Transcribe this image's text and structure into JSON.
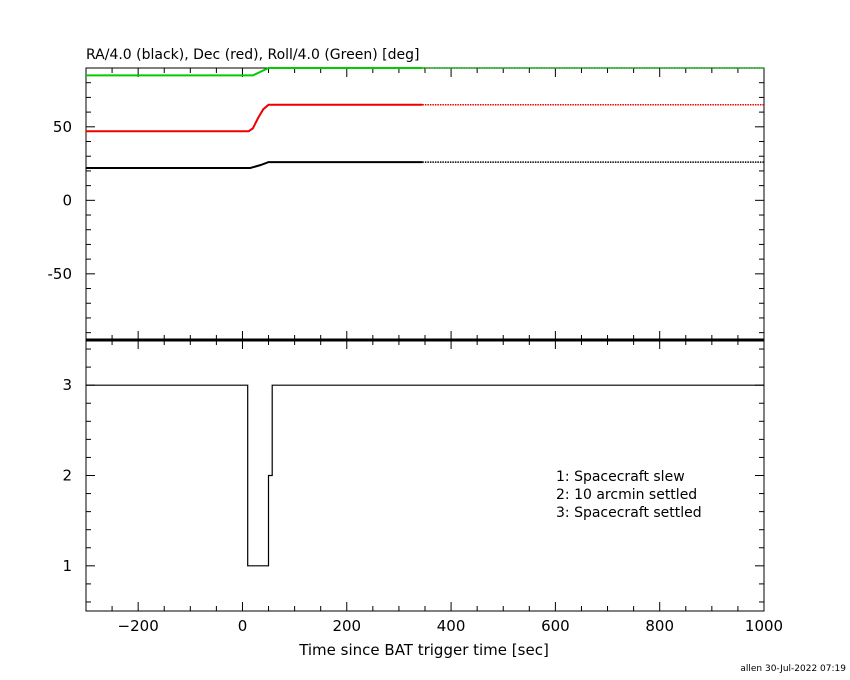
{
  "chart_data": [
    {
      "type": "line",
      "title": "RA/4.0 (black), Dec (red), Roll/4.0 (Green) [deg]",
      "xlim": [
        -300,
        1000
      ],
      "ylim": [
        -95,
        90
      ],
      "yticks": [
        {
          "value": 50,
          "label": "50"
        },
        {
          "value": 0,
          "label": "0"
        },
        {
          "value": -50,
          "label": "-50"
        }
      ],
      "solid_until": 345,
      "series": [
        {
          "color": "#00cc00",
          "x": [
            -300,
            20,
            50,
            1000
          ],
          "y": [
            85,
            85,
            90,
            90
          ]
        },
        {
          "color": "#ee0000",
          "x": [
            -300,
            12,
            20,
            30,
            40,
            50,
            1000
          ],
          "y": [
            47,
            47,
            49,
            56,
            62,
            65,
            65
          ]
        },
        {
          "color": "#000000",
          "x": [
            -300,
            15,
            35,
            50,
            1000
          ],
          "y": [
            22,
            22,
            24,
            26,
            26
          ]
        }
      ]
    },
    {
      "type": "line",
      "xlabel": "Time since BAT trigger time [sec]",
      "xlim": [
        -300,
        1000
      ],
      "ylim": [
        0.5,
        3.5
      ],
      "xticks": [
        {
          "value": -200,
          "label": "−200"
        },
        {
          "value": 0,
          "label": "0"
        },
        {
          "value": 200,
          "label": "200"
        },
        {
          "value": 400,
          "label": "400"
        },
        {
          "value": 600,
          "label": "600"
        },
        {
          "value": 800,
          "label": "800"
        },
        {
          "value": 1000,
          "label": "1000"
        }
      ],
      "yticks": [
        {
          "value": 3,
          "label": "3"
        },
        {
          "value": 2,
          "label": "2"
        },
        {
          "value": 1,
          "label": "1"
        }
      ],
      "series": [
        {
          "color": "#000000",
          "x": [
            -300,
            10,
            10,
            50,
            50,
            57,
            57,
            1000
          ],
          "y": [
            3,
            3,
            1,
            1,
            2,
            2,
            3,
            3
          ]
        }
      ],
      "legend": [
        "1: Spacecraft slew",
        "2: 10 arcmin settled",
        "3: Spacecraft settled"
      ]
    }
  ],
  "footer": "allen 30-Jul-2022 07:19"
}
